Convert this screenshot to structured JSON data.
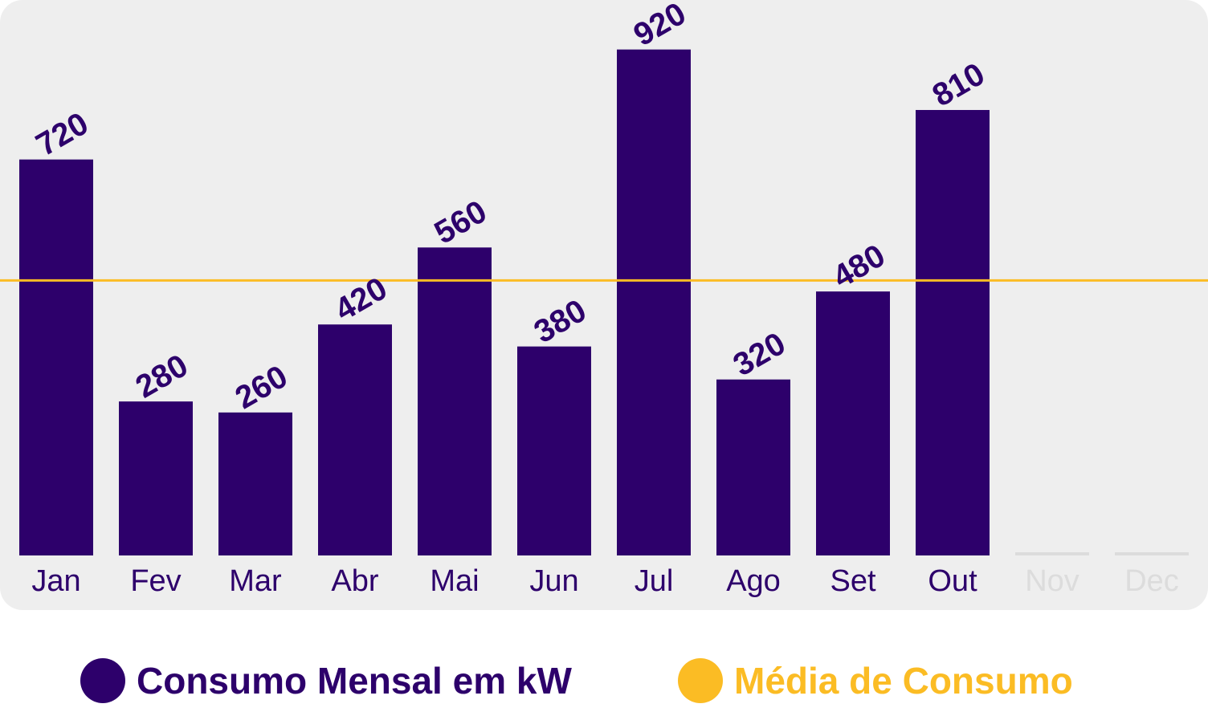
{
  "colors": {
    "bar": "#2d006b",
    "average": "#fbbc24",
    "axis_text": "#2d006b",
    "muted": "#dcdcdc",
    "panel": "#eeeeee"
  },
  "legend": {
    "consumo_label": "Consumo Mensal em kW",
    "media_label": "Média  de Consumo"
  },
  "chart_data": {
    "type": "bar",
    "title": "",
    "xlabel": "",
    "ylabel": "",
    "categories": [
      "Jan",
      "Fev",
      "Mar",
      "Abr",
      "Mai",
      "Jun",
      "Jul",
      "Ago",
      "Set",
      "Out",
      "Nov",
      "Dec"
    ],
    "series": [
      {
        "name": "Consumo Mensal em kW",
        "values": [
          720,
          280,
          260,
          420,
          560,
          380,
          920,
          320,
          480,
          810,
          null,
          null
        ],
        "labels": [
          "720",
          "280",
          "260",
          "420",
          "560",
          "380",
          "920",
          "320",
          "480",
          "810",
          "",
          ""
        ]
      }
    ],
    "reference_lines": [
      {
        "name": "Média  de Consumo",
        "value": 500
      }
    ],
    "ylim": [
      0,
      1010
    ],
    "grid": false,
    "legend_position": "bottom"
  }
}
